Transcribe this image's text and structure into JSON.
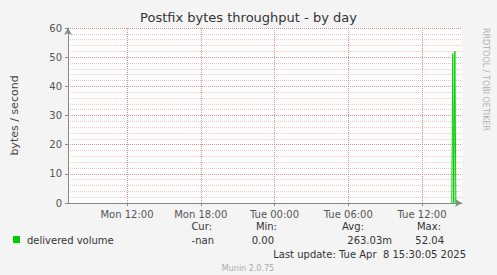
{
  "chart_data": {
    "type": "line",
    "title": "Postfix bytes throughput - by day",
    "y_label": "bytes / second",
    "x": [
      38.42,
      38.5,
      38.58,
      38.67,
      38.75,
      38.83,
      38.92
    ],
    "series": [
      {
        "name": "delivered volume",
        "color": "#00cc00",
        "values": [
          0,
          51.2,
          0,
          52.04,
          0,
          0,
          0
        ],
        "stats": [
          {
            "label": "Cur:",
            "value": "-nan"
          },
          {
            "label": "Min:",
            "value": "0.00"
          },
          {
            "label": "Avg:",
            "value": "263.03m"
          },
          {
            "label": "Max:",
            "value": "52.04"
          }
        ]
      }
    ],
    "xlim": [
      7.2,
      39.25
    ],
    "xticks": [
      {
        "value": 12,
        "label": "Mon 12:00"
      },
      {
        "value": 18,
        "label": "Mon 18:00"
      },
      {
        "value": 24,
        "label": "Tue 00:00"
      },
      {
        "value": 30,
        "label": "Tue 06:00"
      },
      {
        "value": 36,
        "label": "Tue 12:00"
      }
    ],
    "ylim": [
      0,
      60
    ],
    "yticks": [
      0,
      10,
      20,
      30,
      40,
      50,
      60
    ],
    "grid": true,
    "legend": "bottom-left",
    "footer": "Last update: Tue Apr  8 15:30:05 2025",
    "credit": "Munin 2.0.75",
    "side_text": "RRDTOOL / TOBI OETIKER"
  }
}
